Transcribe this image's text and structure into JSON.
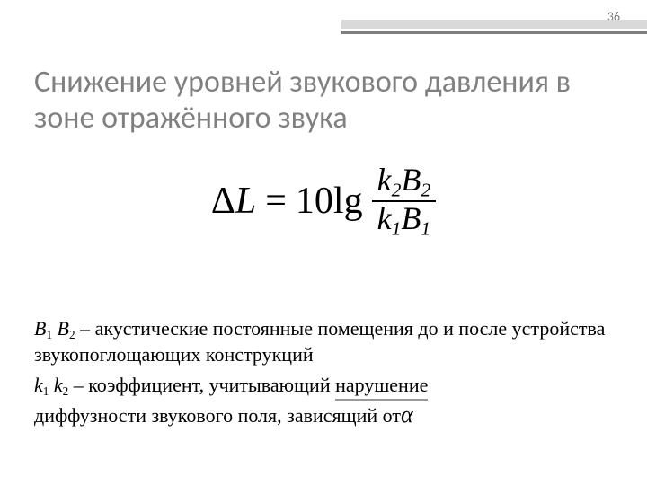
{
  "page_number": "36",
  "title": "Снижение уровней звукового давления в зоне отражённого звука",
  "formula": {
    "lhs_delta": "Δ",
    "lhs_L": "L",
    "eq": "=",
    "coeff": "10",
    "op": "lg",
    "num_k": "k",
    "num_k_sub": "2",
    "num_B": "B",
    "num_B_sub": "2",
    "den_k": "k",
    "den_k_sub": "1",
    "den_B": "B",
    "den_B_sub": "1"
  },
  "defs": {
    "b_sym_1": "B",
    "b_sub_1": "1",
    "b_sym_2": "B",
    "b_sub_2": "2",
    "b_text": " – акустические постоянные помещения до и после устройства звукопоглощающих конструкций",
    "k_sym_1": "k",
    "k_sub_1": "1",
    "k_sym_2": "k",
    "k_sub_2": "2",
    "k_text_1": " – коэффициент, учитывающий ",
    "k_text_underlined": "нарушение",
    "k_text_2": "диффузности звукового поля, зависящий от ",
    "alpha": "α"
  },
  "colors": {
    "title": "#808080",
    "bar_light": "#d9d9d9",
    "bar_dark": "#7f7f7f",
    "text": "#000000",
    "underline": "#999999",
    "background": "#ffffff"
  }
}
